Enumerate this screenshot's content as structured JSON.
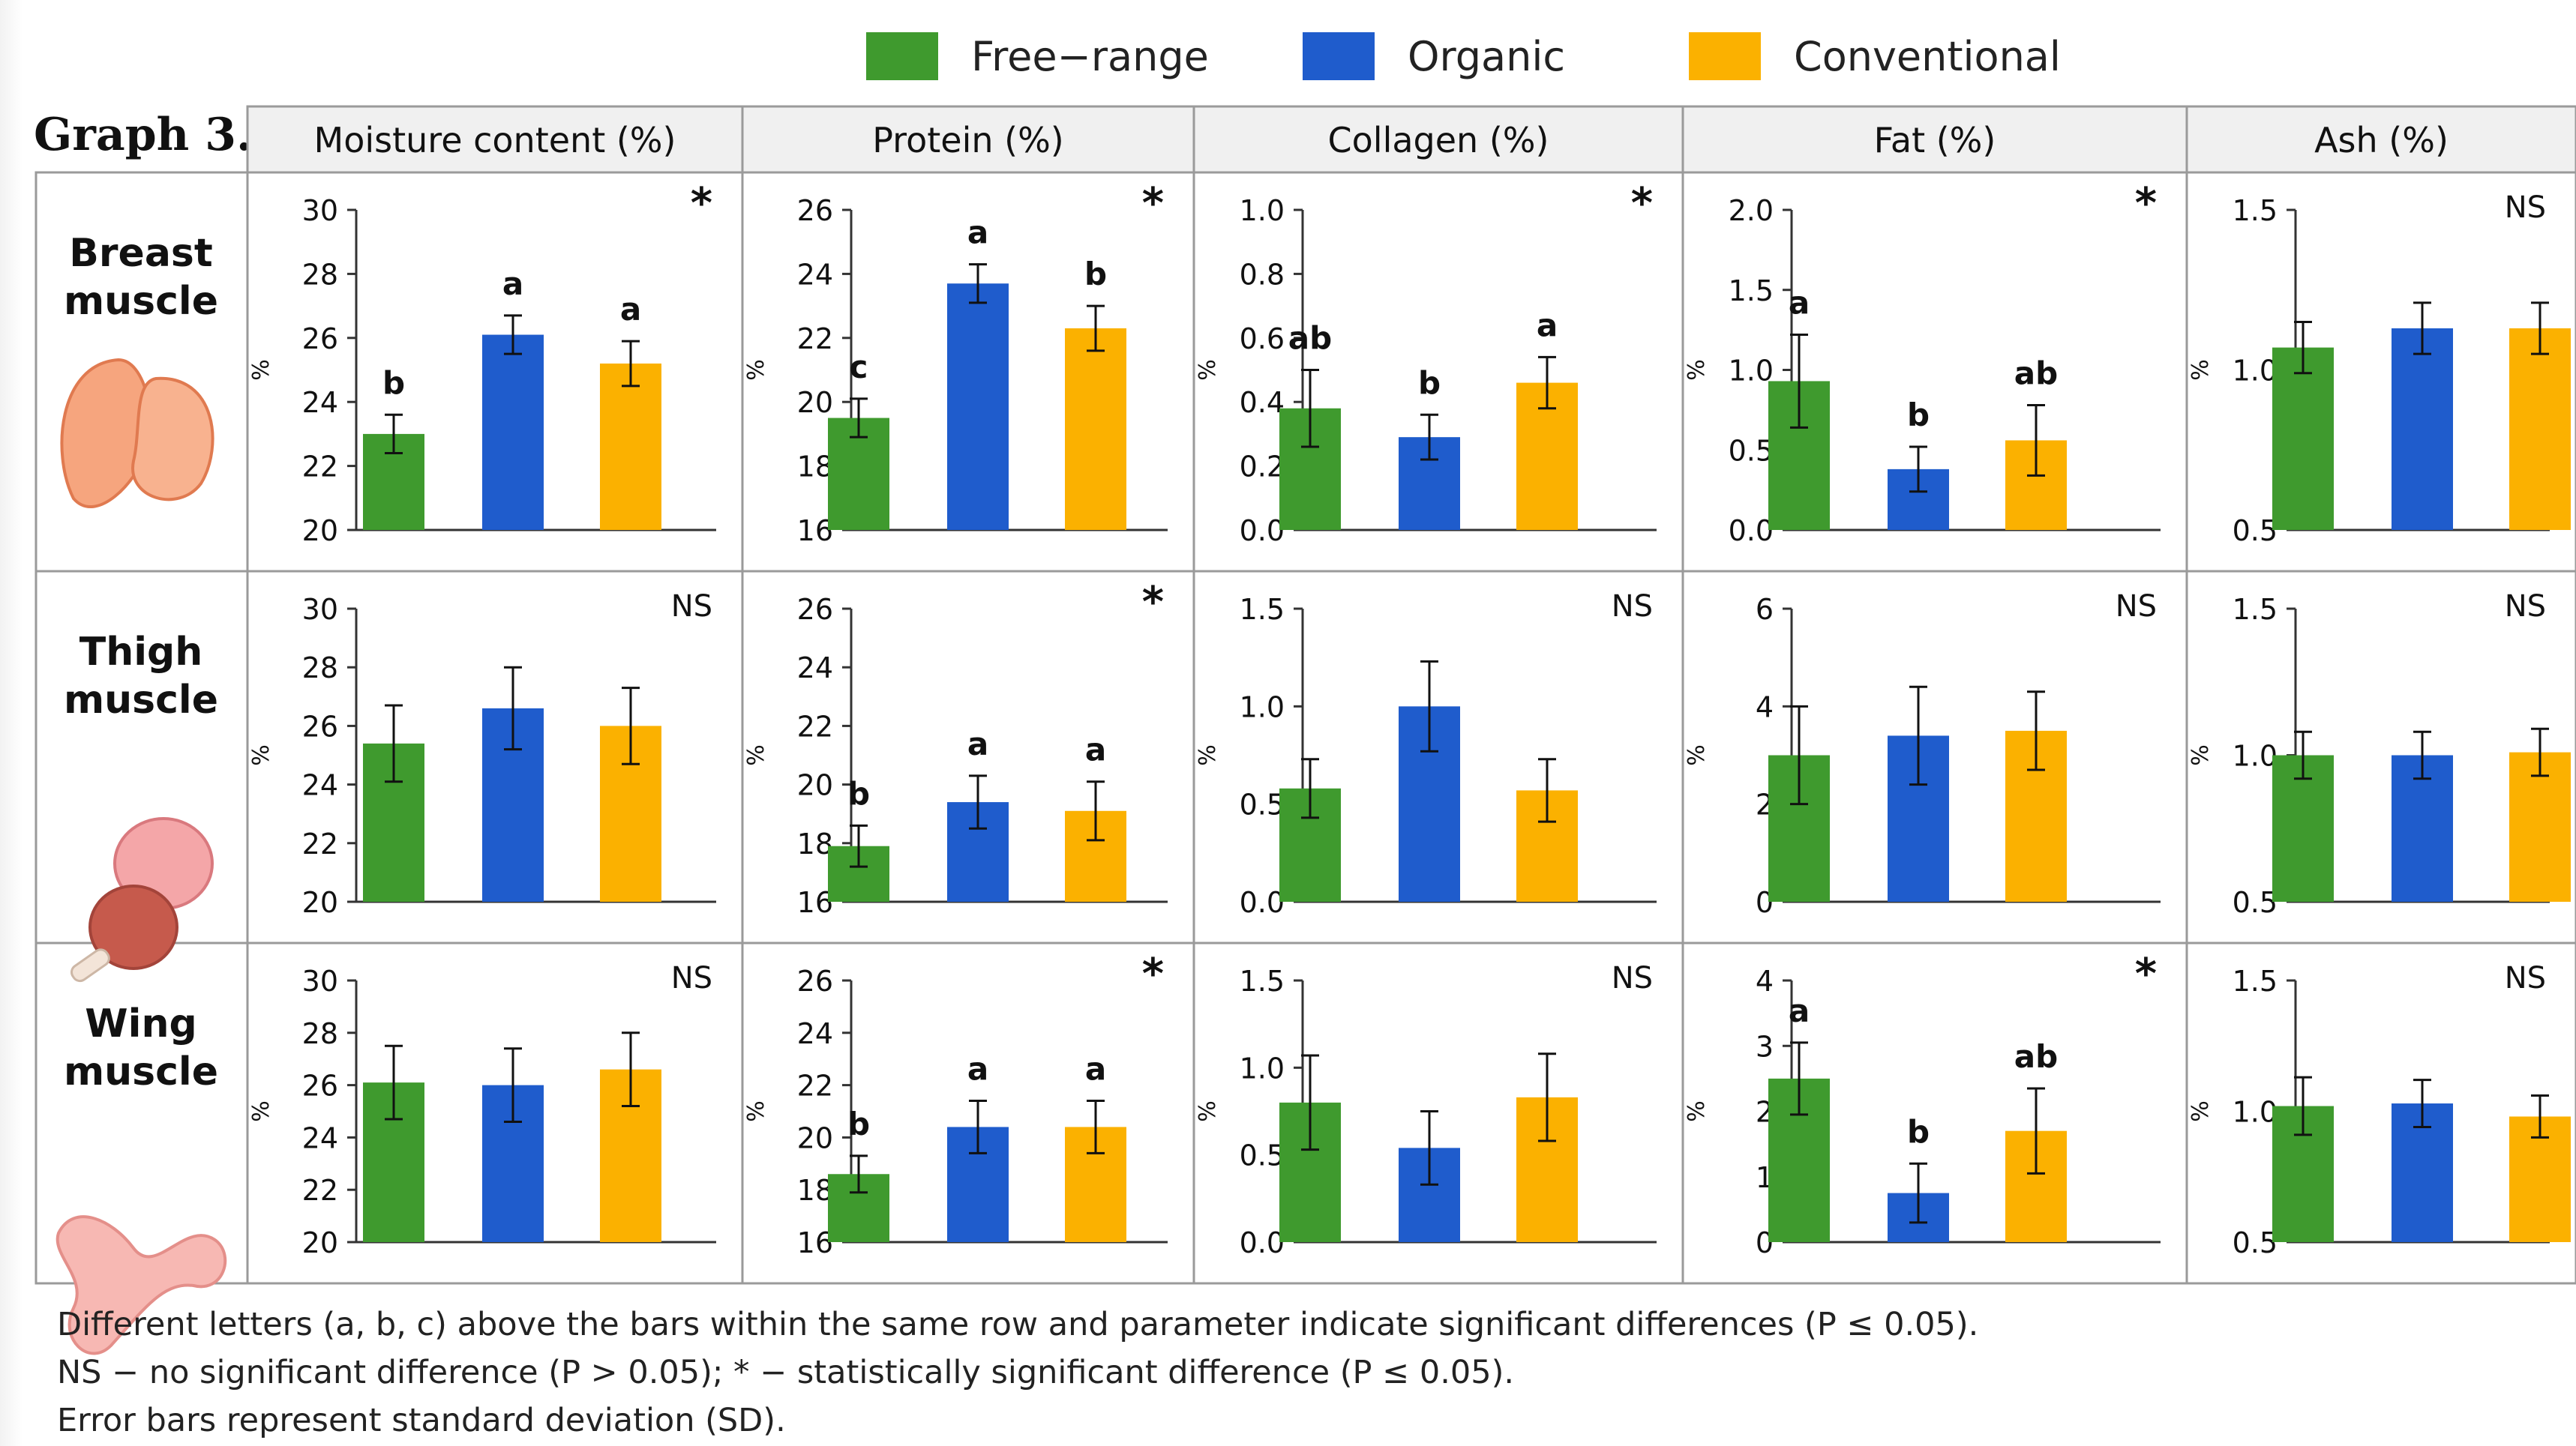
{
  "figure_label": "Graph 3.",
  "legend": [
    {
      "name": "Free−range",
      "color": "#3f9a2e"
    },
    {
      "name": "Organic",
      "color": "#1f5ccc"
    },
    {
      "name": "Conventional",
      "color": "#fbb100"
    }
  ],
  "footnote": {
    "line1": "Different letters (a, b, c) above the bars within the same row and parameter indicate significant differences (P ≤ 0.05).",
    "line2": "NS − no significant difference (P > 0.05);    * − statistically significant difference (P ≤ 0.05).",
    "line3": "Error bars represent standard deviation (SD)."
  },
  "chart_data": {
    "type": "bar",
    "layout": "grid",
    "y_unit_label": "%",
    "series_names": [
      "Free−range",
      "Organic",
      "Conventional"
    ],
    "series_colors": [
      "#3f9a2e",
      "#1f5ccc",
      "#fbb100"
    ],
    "columns": [
      {
        "title": "Moisture content (%)"
      },
      {
        "title": "Protein (%)"
      },
      {
        "title": "Collagen (%)"
      },
      {
        "title": "Fat (%)"
      },
      {
        "title": "Ash (%)"
      }
    ],
    "rows": [
      {
        "label_lines": [
          "Breast",
          "muscle"
        ],
        "icon": "chicken-breast-icon",
        "panels": [
          {
            "ylim": [
              20,
              30
            ],
            "ticks": [
              "20",
              "22",
              "24",
              "26",
              "28",
              "30"
            ],
            "values": [
              23.0,
              26.1,
              25.2
            ],
            "errors": [
              0.6,
              0.6,
              0.7
            ],
            "letters": [
              "b",
              "a",
              "a"
            ],
            "significance": "*"
          },
          {
            "ylim": [
              16,
              26
            ],
            "ticks": [
              "16",
              "18",
              "20",
              "22",
              "24",
              "26"
            ],
            "values": [
              19.5,
              23.7,
              22.3
            ],
            "errors": [
              0.6,
              0.6,
              0.7
            ],
            "letters": [
              "c",
              "a",
              "b"
            ],
            "significance": "*"
          },
          {
            "ylim": [
              0,
              1.0
            ],
            "ticks": [
              "0.0",
              "0.2",
              "0.4",
              "0.6",
              "0.8",
              "1.0"
            ],
            "values": [
              0.38,
              0.29,
              0.46
            ],
            "errors": [
              0.12,
              0.07,
              0.08
            ],
            "letters": [
              "ab",
              "b",
              "a"
            ],
            "significance": "*"
          },
          {
            "ylim": [
              0,
              2.0
            ],
            "ticks": [
              "0.0",
              "0.5",
              "1.0",
              "1.5",
              "2.0"
            ],
            "values": [
              0.93,
              0.38,
              0.56
            ],
            "errors": [
              0.29,
              0.14,
              0.22
            ],
            "letters": [
              "a",
              "b",
              "ab"
            ],
            "significance": "*"
          },
          {
            "ylim": [
              0.5,
              1.5
            ],
            "ticks": [
              "0.5",
              "1.0",
              "1.5"
            ],
            "values": [
              1.07,
              1.13,
              1.13
            ],
            "errors": [
              0.08,
              0.08,
              0.08
            ],
            "letters": [
              "",
              "",
              ""
            ],
            "significance": "NS"
          }
        ]
      },
      {
        "label_lines": [
          "Thigh",
          "muscle"
        ],
        "icon": "chicken-thigh-icon",
        "panels": [
          {
            "ylim": [
              20,
              30
            ],
            "ticks": [
              "20",
              "22",
              "24",
              "26",
              "28",
              "30"
            ],
            "values": [
              25.4,
              26.6,
              26.0
            ],
            "errors": [
              1.3,
              1.4,
              1.3
            ],
            "letters": [
              "",
              "",
              ""
            ],
            "significance": "NS"
          },
          {
            "ylim": [
              16,
              26
            ],
            "ticks": [
              "16",
              "18",
              "20",
              "22",
              "24",
              "26"
            ],
            "values": [
              17.9,
              19.4,
              19.1
            ],
            "errors": [
              0.7,
              0.9,
              1.0
            ],
            "letters": [
              "b",
              "a",
              "a"
            ],
            "significance": "*"
          },
          {
            "ylim": [
              0,
              1.5
            ],
            "ticks": [
              "0.0",
              "0.5",
              "1.0",
              "1.5"
            ],
            "values": [
              0.58,
              1.0,
              0.57
            ],
            "errors": [
              0.15,
              0.23,
              0.16
            ],
            "letters": [
              "",
              "",
              ""
            ],
            "significance": "NS"
          },
          {
            "ylim": [
              0,
              6
            ],
            "ticks": [
              "0",
              "2",
              "4",
              "6"
            ],
            "values": [
              3.0,
              3.4,
              3.5
            ],
            "errors": [
              1.0,
              1.0,
              0.8
            ],
            "letters": [
              "",
              "",
              ""
            ],
            "significance": "NS"
          },
          {
            "ylim": [
              0.5,
              1.5
            ],
            "ticks": [
              "0.5",
              "1.0",
              "1.5"
            ],
            "values": [
              1.0,
              1.0,
              1.01
            ],
            "errors": [
              0.08,
              0.08,
              0.08
            ],
            "letters": [
              "",
              "",
              ""
            ],
            "significance": "NS"
          }
        ]
      },
      {
        "label_lines": [
          "Wing",
          "muscle"
        ],
        "icon": "chicken-wing-icon",
        "panels": [
          {
            "ylim": [
              20,
              30
            ],
            "ticks": [
              "20",
              "22",
              "24",
              "26",
              "28",
              "30"
            ],
            "values": [
              26.1,
              26.0,
              26.6
            ],
            "errors": [
              1.4,
              1.4,
              1.4
            ],
            "letters": [
              "",
              "",
              ""
            ],
            "significance": "NS"
          },
          {
            "ylim": [
              16,
              26
            ],
            "ticks": [
              "16",
              "18",
              "20",
              "22",
              "24",
              "26"
            ],
            "values": [
              18.6,
              20.4,
              20.4
            ],
            "errors": [
              0.7,
              1.0,
              1.0
            ],
            "letters": [
              "b",
              "a",
              "a"
            ],
            "significance": "*"
          },
          {
            "ylim": [
              0,
              1.5
            ],
            "ticks": [
              "0.0",
              "0.5",
              "1.0",
              "1.5"
            ],
            "values": [
              0.8,
              0.54,
              0.83
            ],
            "errors": [
              0.27,
              0.21,
              0.25
            ],
            "letters": [
              "",
              "",
              ""
            ],
            "significance": "NS"
          },
          {
            "ylim": [
              0,
              4
            ],
            "ticks": [
              "0",
              "1",
              "2",
              "3",
              "4"
            ],
            "values": [
              2.5,
              0.75,
              1.7
            ],
            "errors": [
              0.55,
              0.45,
              0.65
            ],
            "letters": [
              "a",
              "b",
              "ab"
            ],
            "significance": "*"
          },
          {
            "ylim": [
              0.5,
              1.5
            ],
            "ticks": [
              "0.5",
              "1.0",
              "1.5"
            ],
            "values": [
              1.02,
              1.03,
              0.98
            ],
            "errors": [
              0.11,
              0.09,
              0.08
            ],
            "letters": [
              "",
              "",
              ""
            ],
            "significance": "NS"
          }
        ]
      }
    ]
  }
}
